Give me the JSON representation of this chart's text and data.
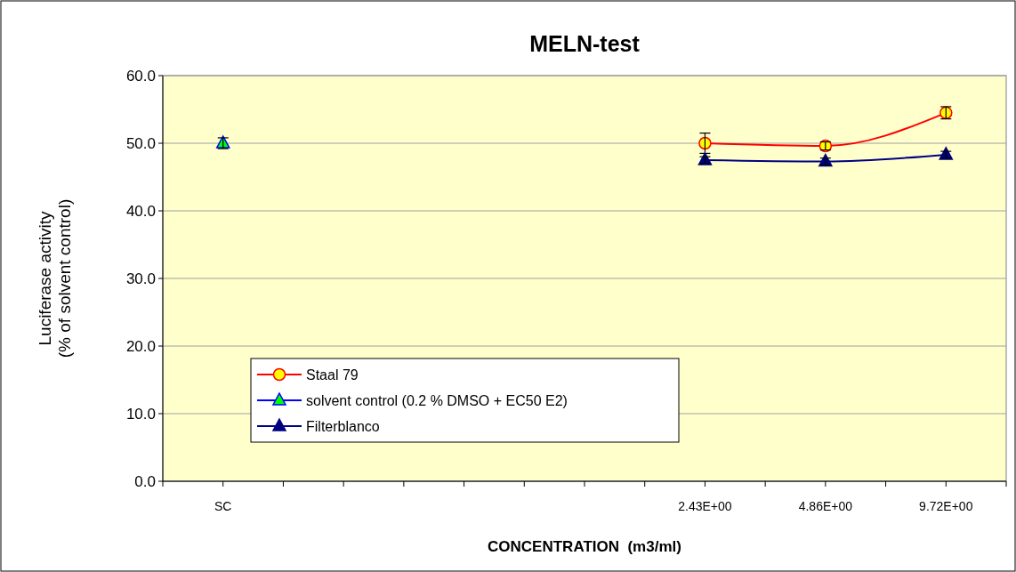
{
  "chart_data": {
    "type": "line",
    "title": "MELN-test",
    "xlabel": "CONCENTRATION  (m3/ml)",
    "ylabel": "Luciferase activity\n(% of solvent control)",
    "categories": [
      "SC",
      null,
      null,
      null,
      "2.43E+00",
      "4.86E+00",
      "9.72E+00"
    ],
    "series": [
      {
        "name": "Staal 79",
        "color": "#ff0000",
        "marker": "circle",
        "values": [
          null,
          null,
          null,
          null,
          50.0,
          49.6,
          54.5
        ],
        "errors": [
          null,
          null,
          null,
          null,
          1.5,
          0.6,
          0.9
        ]
      },
      {
        "name": "solvent control (0.2 % DMSO + EC50 E2)",
        "color": "#0000ff",
        "marker": "triangle",
        "values": [
          50.0,
          null,
          null,
          null,
          null,
          null,
          null
        ],
        "errors": [
          0.8,
          null,
          null,
          null,
          null,
          null,
          null
        ]
      },
      {
        "name": "Filterblanco",
        "color": "#000080",
        "marker": "triangle",
        "values": [
          null,
          null,
          null,
          null,
          47.5,
          47.3,
          48.3
        ],
        "errors": [
          null,
          null,
          null,
          null,
          0.5,
          0.5,
          0.5
        ]
      }
    ],
    "ylim": [
      0,
      60
    ],
    "yticks": [
      {
        "value": 0,
        "label": "0.0"
      },
      {
        "value": 10,
        "label": "10.0"
      },
      {
        "value": 20,
        "label": "20.0"
      },
      {
        "value": 30,
        "label": "30.0"
      },
      {
        "value": 40,
        "label": "40.0"
      },
      {
        "value": 50,
        "label": "50.0"
      },
      {
        "value": 60,
        "label": "60.0"
      }
    ],
    "grid": "y",
    "legend": "bottom left",
    "line_style": "solid"
  }
}
